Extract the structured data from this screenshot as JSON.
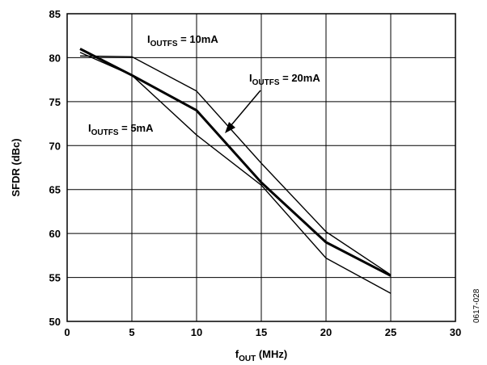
{
  "chart_data": {
    "type": "line",
    "xlabel": {
      "main": "f",
      "sub": "OUT",
      "rest": " (MHz)"
    },
    "ylabel": "SFDR (dBc)",
    "xlim": [
      0,
      30
    ],
    "ylim": [
      50,
      85
    ],
    "x_ticks": [
      0,
      5,
      10,
      15,
      20,
      25,
      30
    ],
    "y_ticks": [
      50,
      55,
      60,
      65,
      70,
      75,
      80,
      85
    ],
    "grid": true,
    "series": [
      {
        "name": {
          "main": "I",
          "sub": "OUTFS",
          "rest": " = 10mA"
        },
        "x": [
          1,
          5,
          10,
          15,
          20,
          25
        ],
        "y": [
          80.2,
          80.1,
          76.2,
          68,
          60.2,
          55.3
        ],
        "color": "#000000",
        "weight": "thin"
      },
      {
        "name": {
          "main": "I",
          "sub": "OUTFS",
          "rest": " = 20mA"
        },
        "x": [
          1,
          5,
          10,
          15,
          20,
          25
        ],
        "y": [
          81,
          78,
          74,
          65.8,
          59,
          55.2
        ],
        "color": "#000000",
        "weight": "thick"
      },
      {
        "name": {
          "main": "I",
          "sub": "OUTFS",
          "rest": " = 5mA"
        },
        "x": [
          1,
          5,
          10,
          15,
          20,
          25
        ],
        "y": [
          80.6,
          78,
          71.2,
          65.5,
          57.2,
          53.2
        ],
        "color": "#000000",
        "weight": "thin"
      }
    ],
    "figure_id": "0617-028"
  }
}
